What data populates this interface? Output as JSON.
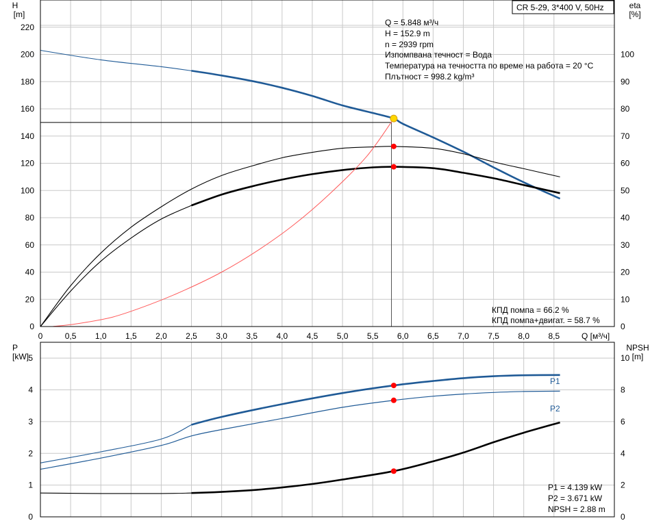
{
  "product_label": "CR 5-29, 3*400 V, 50Hz",
  "colors": {
    "head": "#1f5a96",
    "power": "#1f5a96",
    "eff": "#000000",
    "red_curve": "#ff5a5a",
    "marker": "#ff0000",
    "duty_point": "#ffd700"
  },
  "chart_data": [
    {
      "type": "line",
      "axes": {
        "left": {
          "title": "H",
          "unit": "[m]",
          "ticks": [
            0,
            20,
            40,
            60,
            80,
            100,
            120,
            140,
            160,
            180,
            200,
            220
          ],
          "ylim": [
            0,
            240
          ]
        },
        "right": {
          "title": "eta",
          "unit": "[%]",
          "ticks": [
            0,
            10,
            20,
            30,
            40,
            50,
            60,
            70,
            80,
            90,
            100
          ],
          "ylim": [
            0,
            120
          ]
        },
        "bottom": {
          "title": "Q [м³/ч]",
          "ticks": [
            "0",
            "0,5",
            "1,0",
            "1,5",
            "2,0",
            "2,5",
            "3,0",
            "3,5",
            "4,0",
            "4,5",
            "5,0",
            "5,5",
            "6,0",
            "6,5",
            "7,0",
            "7,5",
            "8,0",
            "8,5"
          ],
          "tick_values": [
            0,
            0.5,
            1,
            1.5,
            2,
            2.5,
            3,
            3.5,
            4,
            4.5,
            5,
            5.5,
            6,
            6.5,
            7,
            7.5,
            8,
            8.5
          ],
          "xlim": [
            0,
            9.5
          ]
        }
      },
      "series": [
        {
          "axis": "left",
          "style": "thick-blue",
          "note": "head Q-H",
          "x": [
            0,
            1,
            2,
            2.5,
            3,
            3.5,
            4,
            4.5,
            5,
            5.5,
            5.848,
            6,
            6.5,
            7,
            7.5,
            8,
            8.6
          ],
          "y": [
            203,
            196,
            191,
            188,
            184.5,
            180.5,
            175.5,
            169.5,
            162.5,
            157,
            152.9,
            149,
            139,
            128.5,
            117,
            106,
            94
          ]
        },
        {
          "axis": "right",
          "style": "thin-black",
          "note": "eta pump",
          "x": [
            0,
            0.5,
            1,
            1.5,
            2,
            2.5,
            3,
            3.5,
            4,
            4.5,
            5,
            5.5,
            5.848,
            6.5,
            7,
            7.5,
            8,
            8.6
          ],
          "y": [
            0,
            15,
            27,
            36.5,
            44,
            50.5,
            55.5,
            59,
            62,
            64,
            65.5,
            66,
            66.2,
            65.5,
            63.5,
            60.5,
            58,
            55
          ]
        },
        {
          "axis": "right",
          "style": "thick-black",
          "note": "eta pump+motor",
          "x": [
            0,
            0.5,
            1,
            1.5,
            2,
            2.5,
            3,
            3.5,
            4,
            4.5,
            5,
            5.5,
            5.848,
            6.5,
            7,
            7.5,
            8,
            8.6
          ],
          "y": [
            0,
            13,
            24,
            32.5,
            39.5,
            44.5,
            48.5,
            51.5,
            54,
            56,
            57.5,
            58.5,
            58.7,
            58.2,
            56.5,
            54.5,
            52,
            49
          ]
        },
        {
          "axis": "left",
          "style": "thin-red",
          "note": "system curve",
          "x": [
            0.2,
            0.6,
            1.2,
            1.8,
            2.4,
            3,
            3.6,
            4.2,
            4.8,
            5.4,
            5.848
          ],
          "y": [
            0,
            2,
            7,
            16,
            27,
            40,
            56,
            75,
            98,
            125,
            152.9
          ]
        }
      ],
      "markers": [
        {
          "axis": "left",
          "x": 5.848,
          "y": 152.9,
          "kind": "duty"
        },
        {
          "axis": "right",
          "x": 5.848,
          "y": 66.2,
          "kind": "red"
        },
        {
          "axis": "right",
          "x": 5.848,
          "y": 58.7,
          "kind": "red"
        }
      ],
      "guide": {
        "x": 5.81,
        "y": 150
      },
      "info_lines": [
        "Q = 5.848 м³/ч",
        "H = 152.9 m",
        "n = 2939 rpm",
        "Изпомпвана течност = Вода",
        "Температура на течността по време на работа = 20 °C",
        "Плътност = 998.2 kg/m³"
      ],
      "eff_lines": [
        "КПД помпа = 66.2 %",
        "КПД помпа+двигат. = 58.7 %"
      ]
    },
    {
      "type": "line",
      "axes": {
        "left": {
          "title": "P",
          "unit": "[kW]",
          "ticks": [
            0,
            1,
            2,
            3,
            4,
            5
          ],
          "ylim": [
            0,
            5.5
          ]
        },
        "right": {
          "title": "NPSH",
          "unit": "[m]",
          "ticks": [
            0,
            2,
            4,
            6,
            8,
            10
          ],
          "ylim": [
            0,
            11
          ]
        },
        "xlim": [
          0,
          9.5
        ]
      },
      "series": [
        {
          "axis": "left",
          "name": "P1",
          "style": "thick-blue",
          "x": [
            0,
            1,
            2,
            2.5,
            3,
            4,
            5,
            5.848,
            6.5,
            7,
            7.5,
            8,
            8.6
          ],
          "y": [
            1.7,
            2.05,
            2.45,
            2.9,
            3.15,
            3.55,
            3.9,
            4.139,
            4.28,
            4.37,
            4.43,
            4.46,
            4.47
          ]
        },
        {
          "axis": "left",
          "name": "P2",
          "style": "thin-blue",
          "x": [
            0,
            1,
            2,
            2.5,
            3,
            4,
            5,
            5.848,
            6.5,
            7,
            7.5,
            8,
            8.6
          ],
          "y": [
            1.5,
            1.85,
            2.25,
            2.55,
            2.75,
            3.1,
            3.45,
            3.671,
            3.8,
            3.87,
            3.92,
            3.95,
            3.96
          ]
        },
        {
          "axis": "right",
          "style": "thick-black",
          "note": "NPSH",
          "x": [
            0,
            1,
            2,
            2.5,
            3,
            3.5,
            4,
            4.5,
            5,
            5.848,
            6.5,
            7,
            7.5,
            8,
            8.6
          ],
          "y": [
            1.5,
            1.47,
            1.47,
            1.5,
            1.57,
            1.68,
            1.85,
            2.07,
            2.35,
            2.88,
            3.5,
            4.05,
            4.7,
            5.3,
            5.95
          ]
        }
      ],
      "markers": [
        {
          "axis": "left",
          "x": 5.848,
          "y": 4.139,
          "kind": "red"
        },
        {
          "axis": "left",
          "x": 5.848,
          "y": 3.671,
          "kind": "red"
        },
        {
          "axis": "right",
          "x": 5.848,
          "y": 2.88,
          "kind": "red"
        }
      ],
      "series_labels": [
        "P1",
        "P2"
      ],
      "result_lines": [
        "P1 = 4.139 kW",
        "P2 = 3.671 kW",
        "NPSH = 2.88 m"
      ]
    }
  ]
}
